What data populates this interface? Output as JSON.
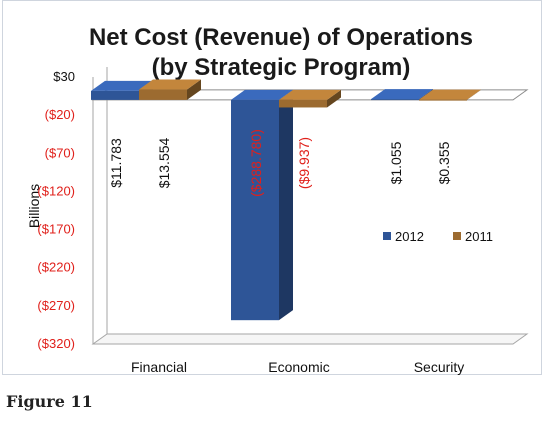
{
  "figure_caption": "Figure 11",
  "chart_data": {
    "type": "bar",
    "title_line1": "Net Cost (Revenue) of Operations",
    "title_line2": "(by Strategic Program)",
    "xlabel": "",
    "ylabel": "Billions",
    "categories": [
      "Financial",
      "Economic",
      "Security"
    ],
    "ylim": [
      -320,
      30
    ],
    "yticks": [
      30,
      -20,
      -70,
      -120,
      -170,
      -220,
      -270,
      -320
    ],
    "ytick_labels": [
      "$30",
      "($20)",
      "($70)",
      "($120)",
      "($170)",
      "($220)",
      "($270)",
      "($320)"
    ],
    "series": [
      {
        "name": "2012",
        "values": [
          11.783,
          -288.78,
          1.055
        ],
        "labels": [
          "$11.783",
          "($288.780)",
          "$1.055"
        ],
        "color": "#2e5597"
      },
      {
        "name": "2011",
        "values": [
          13.554,
          -9.937,
          0.355
        ],
        "labels": [
          "$13.554",
          "($9.937)",
          "$0.355"
        ],
        "color": "#9c6b30"
      }
    ],
    "legend_position": "right",
    "grid": false,
    "colors": {
      "negative": "#e0201b",
      "positive": "#111111"
    }
  }
}
